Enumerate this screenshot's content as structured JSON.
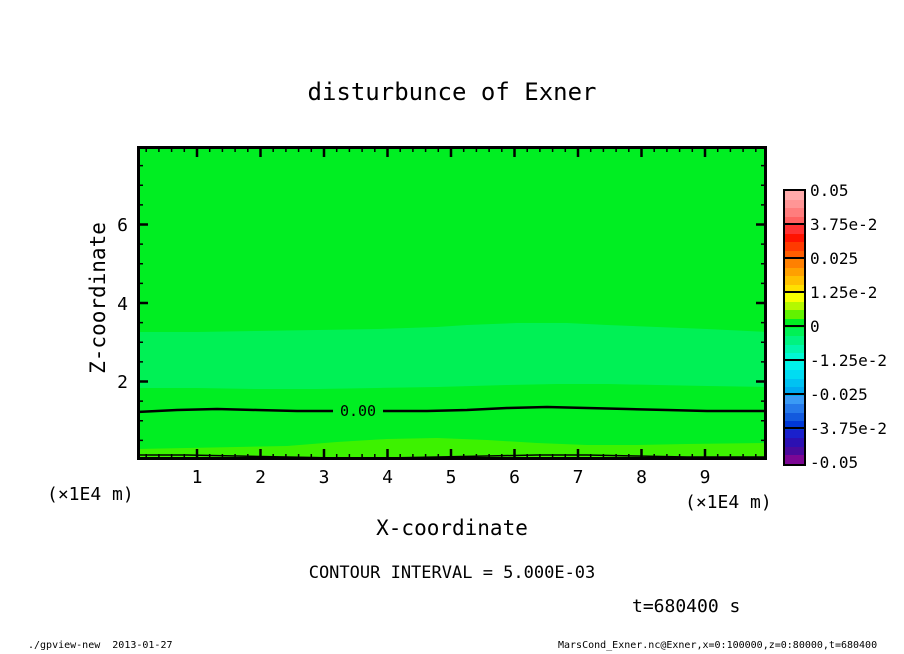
{
  "title": "disturbunce of Exner",
  "axes": {
    "x_label": "X-coordinate",
    "y_label": "Z-coordinate",
    "x_unit_left": "(×1E4 m)",
    "x_unit_right": "(×1E4 m)",
    "x_ticks": [
      "1",
      "2",
      "3",
      "4",
      "5",
      "6",
      "7",
      "8",
      "9"
    ],
    "y_ticks": [
      "6",
      "4",
      "2"
    ]
  },
  "contour": {
    "zero_label": "0.00",
    "interval_text": "CONTOUR INTERVAL = 5.000E-03"
  },
  "time_text": "t=680400 s",
  "footer": {
    "left": "./gpview-new  2013-01-27",
    "right": "MarsCond_Exner.nc@Exner,x=0:100000,z=0:80000,t=680400"
  },
  "colorbar": {
    "labels": [
      "0.05",
      "3.75e-2",
      "0.025",
      "1.25e-2",
      "0",
      "-1.25e-2",
      "-0.025",
      "-3.75e-2",
      "-0.05"
    ],
    "colors": [
      "#ffabab",
      "#ff9595",
      "#ff7d7d",
      "#ff6262",
      "#ff3232",
      "#ff1300",
      "#ff3a00",
      "#ff5d00",
      "#ff8000",
      "#ffa000",
      "#ffc000",
      "#ffe000",
      "#f6ff00",
      "#b4f800",
      "#62f200",
      "#00ee22",
      "#00f155",
      "#00f380",
      "#00f6ab",
      "#00f8d2",
      "#00f2ea",
      "#00dcf2",
      "#00c2f2",
      "#00aaf0",
      "#3a9af5",
      "#2679ea",
      "#135ade",
      "#0038d6",
      "#1a20cc",
      "#2c10b2",
      "#4a0a9c",
      "#7c0794"
    ]
  },
  "chart_data": {
    "type": "heatmap",
    "title": "disturbunce of Exner",
    "xlabel": "X-coordinate (×1E4 m)",
    "ylabel": "Z-coordinate (×1E4 m)",
    "xlim": [
      0,
      10
    ],
    "ylim": [
      0,
      8
    ],
    "x_ticks": [
      1,
      2,
      3,
      4,
      5,
      6,
      7,
      8,
      9
    ],
    "y_ticks": [
      2,
      4,
      6
    ],
    "colorbar_levels": [
      0.05,
      0.0375,
      0.025,
      0.0125,
      0,
      -0.0125,
      -0.025,
      -0.0375,
      -0.05
    ],
    "contour_interval": 0.005,
    "labeled_contours": [
      {
        "level": 0.0,
        "label": "0.00",
        "approx_z_x1e4m": 1.22
      }
    ],
    "unlabeled_contours": [
      {
        "approx_z_x1e4m": 0.12
      }
    ],
    "field_bands": [
      {
        "color": "#00ee22",
        "value_range": [
          0,
          0.0031
        ],
        "z_range_x1e4m": [
          3.3,
          8.0
        ]
      },
      {
        "color": "#00f155",
        "value_range": [
          -0.0031,
          0
        ],
        "z_range_x1e4m": [
          1.85,
          3.3
        ]
      },
      {
        "color": "#00ee22",
        "value_range": [
          0,
          0.0031
        ],
        "z_range_x1e4m": [
          0.45,
          1.85
        ]
      },
      {
        "color": "#3df200",
        "value_range": [
          0.0031,
          0.0062
        ],
        "z_range_x1e4m": [
          0,
          0.45
        ]
      }
    ],
    "time_s": 680400,
    "grid": false,
    "legend_position": "right-colorbar"
  }
}
